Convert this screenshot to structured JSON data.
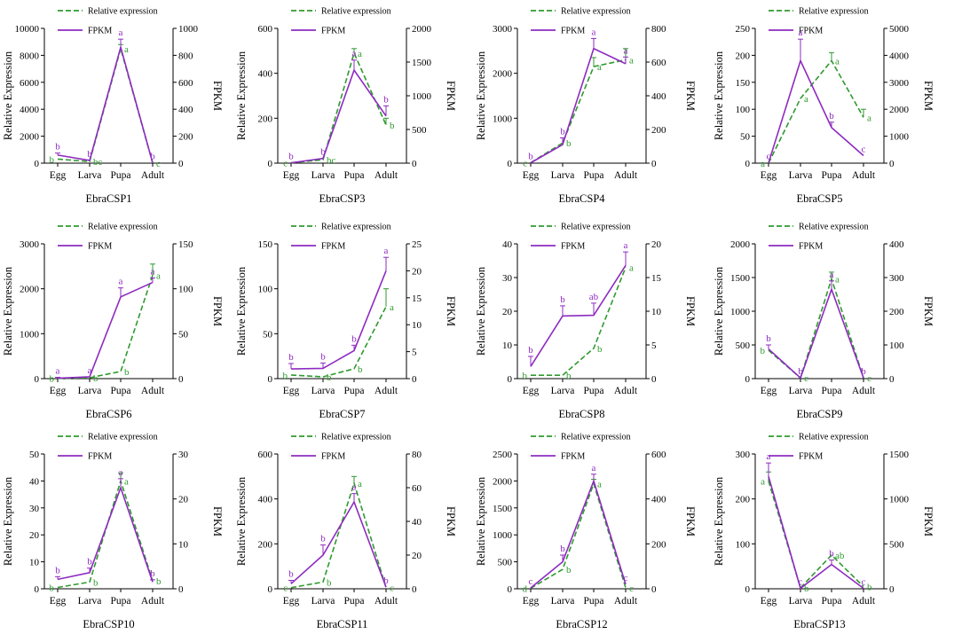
{
  "legend": {
    "relative": "Relative expression",
    "fpkm": "FPKM"
  },
  "colors": {
    "relative": "#2e9a2e",
    "fpkm": "#8e2bc0",
    "axis": "#000000"
  },
  "chart_data": [
    {
      "type": "line",
      "title": "EbraCSP1",
      "categories": [
        "Egg",
        "Larva",
        "Pupa",
        "Adult"
      ],
      "ylabel": "Relative Expression",
      "y2label": "FPKM",
      "ylim": [
        0,
        10000
      ],
      "yticks": [
        0,
        2000,
        4000,
        6000,
        8000,
        10000
      ],
      "y2lim": [
        0,
        1000
      ],
      "y2ticks": [
        0,
        200,
        400,
        600,
        800,
        1000
      ],
      "series": [
        {
          "name": "Relative expression",
          "axis": "left",
          "values": [
            300,
            120,
            8500,
            10
          ],
          "errors": [
            0,
            0,
            300,
            0
          ],
          "letters": [
            "b",
            "bc",
            "a",
            "c"
          ]
        },
        {
          "name": "FPKM",
          "axis": "right",
          "values": [
            60,
            20,
            860,
            2
          ],
          "errors": [
            15,
            0,
            60,
            0
          ],
          "letters": [
            "b",
            "b",
            "a",
            "b"
          ]
        }
      ]
    },
    {
      "type": "line",
      "title": "EbraCSP3",
      "categories": [
        "Egg",
        "Larva",
        "Pupa",
        "Adult"
      ],
      "ylabel": "Relative Expression",
      "y2label": "FPKM",
      "ylim": [
        0,
        600
      ],
      "yticks": [
        0,
        200,
        400,
        600
      ],
      "y2lim": [
        0,
        2000
      ],
      "y2ticks": [
        0,
        500,
        1000,
        1500,
        2000
      ],
      "series": [
        {
          "name": "Relative expression",
          "axis": "left",
          "values": [
            2,
            15,
            490,
            170
          ],
          "errors": [
            0,
            0,
            20,
            30
          ],
          "letters": [
            "c",
            "bc",
            "a",
            "b"
          ]
        },
        {
          "name": "FPKM",
          "axis": "right",
          "values": [
            5,
            70,
            1380,
            700
          ],
          "errors": [
            0,
            0,
            150,
            150
          ],
          "letters": [
            "b",
            "b",
            "a",
            "b"
          ]
        }
      ]
    },
    {
      "type": "line",
      "title": "EbraCSP4",
      "categories": [
        "Egg",
        "Larva",
        "Pupa",
        "Adult"
      ],
      "ylabel": "Relative Expression",
      "y2label": "FPKM",
      "ylim": [
        0,
        3000
      ],
      "yticks": [
        0,
        1000,
        2000,
        3000
      ],
      "y2lim": [
        0,
        800
      ],
      "y2ticks": [
        0,
        200,
        400,
        600,
        800
      ],
      "series": [
        {
          "name": "Relative expression",
          "axis": "left",
          "values": [
            10,
            450,
            2150,
            2300
          ],
          "errors": [
            0,
            0,
            200,
            250
          ],
          "letters": [
            "c",
            "b",
            "a",
            "a"
          ]
        },
        {
          "name": "FPKM",
          "axis": "right",
          "values": [
            2,
            110,
            680,
            590
          ],
          "errors": [
            0,
            40,
            60,
            40
          ],
          "letters": [
            "b",
            "b",
            "a",
            "a"
          ]
        }
      ]
    },
    {
      "type": "line",
      "title": "EbraCSP5",
      "categories": [
        "Egg",
        "Larva",
        "Pupa",
        "Adult"
      ],
      "ylabel": "Relative Expression",
      "y2label": "FPKM",
      "ylim": [
        0,
        250
      ],
      "yticks": [
        0,
        50,
        100,
        150,
        200,
        250
      ],
      "y2lim": [
        0,
        5000
      ],
      "y2ticks": [
        0,
        1000,
        2000,
        3000,
        4000,
        5000
      ],
      "series": [
        {
          "name": "Relative expression",
          "axis": "left",
          "values": [
            0,
            120,
            190,
            85
          ],
          "errors": [
            0,
            0,
            15,
            15
          ],
          "letters": [
            "a",
            "a",
            "a",
            "a"
          ]
        },
        {
          "name": "FPKM",
          "axis": "right",
          "values": [
            10,
            3800,
            1320,
            280
          ],
          "errors": [
            0,
            800,
            200,
            0
          ],
          "letters": [
            "c",
            "a",
            "b",
            "c"
          ]
        }
      ]
    },
    {
      "type": "line",
      "title": "EbraCSP6",
      "categories": [
        "Egg",
        "Larva",
        "Pupa",
        "Adult"
      ],
      "ylabel": "Relative Expression",
      "y2label": "FPKM",
      "ylim": [
        0,
        3000
      ],
      "yticks": [
        0,
        1000,
        2000,
        3000
      ],
      "y2lim": [
        0,
        150
      ],
      "y2ticks": [
        0,
        50,
        100,
        150
      ],
      "series": [
        {
          "name": "Relative expression",
          "axis": "left",
          "values": [
            5,
            20,
            160,
            2300
          ],
          "errors": [
            0,
            0,
            0,
            250
          ],
          "letters": [
            "b",
            "b",
            "b",
            "a"
          ]
        },
        {
          "name": "FPKM",
          "axis": "right",
          "values": [
            0.5,
            2,
            91,
            107
          ],
          "errors": [
            1,
            0,
            10,
            5
          ],
          "letters": [
            "a",
            "a",
            "a",
            "a"
          ]
        }
      ]
    },
    {
      "type": "line",
      "title": "EbraCSP7",
      "categories": [
        "Egg",
        "Larva",
        "Pupa",
        "Adult"
      ],
      "ylabel": "Relative Expression",
      "y2label": "FPKM",
      "ylim": [
        0,
        150
      ],
      "yticks": [
        0,
        50,
        100,
        150
      ],
      "y2lim": [
        0,
        25
      ],
      "y2ticks": [
        0,
        5,
        10,
        15,
        20,
        25
      ],
      "series": [
        {
          "name": "Relative expression",
          "axis": "left",
          "values": [
            4,
            2,
            11,
            80
          ],
          "errors": [
            0,
            0,
            0,
            20
          ],
          "letters": [
            "b",
            "b",
            "b",
            "a"
          ]
        },
        {
          "name": "FPKM",
          "axis": "right",
          "values": [
            1.8,
            1.9,
            5.2,
            20
          ],
          "errors": [
            1,
            1,
            1,
            2.5
          ],
          "letters": [
            "b",
            "b",
            "b",
            "a"
          ]
        }
      ]
    },
    {
      "type": "line",
      "title": "EbraCSP8",
      "categories": [
        "Egg",
        "Larva",
        "Pupa",
        "Adult"
      ],
      "ylabel": "Relative Expression",
      "y2label": "FPKM",
      "ylim": [
        0,
        40
      ],
      "yticks": [
        0,
        10,
        20,
        30,
        40
      ],
      "y2lim": [
        0,
        20
      ],
      "y2ticks": [
        0,
        5,
        10,
        15,
        20
      ],
      "series": [
        {
          "name": "Relative expression",
          "axis": "left",
          "values": [
            1,
            1,
            9,
            33
          ],
          "errors": [
            0,
            0,
            0,
            0
          ],
          "letters": [
            "b",
            "b",
            "b",
            "a"
          ]
        },
        {
          "name": "FPKM",
          "axis": "right",
          "values": [
            1.8,
            9.3,
            9.4,
            16.8
          ],
          "errors": [
            1.5,
            1.5,
            1.8,
            2
          ],
          "letters": [
            "b",
            "b",
            "ab",
            "a"
          ]
        }
      ]
    },
    {
      "type": "line",
      "title": "EbraCSP9",
      "categories": [
        "Egg",
        "Larva",
        "Pupa",
        "Adult"
      ],
      "ylabel": "Relative Expression",
      "y2label": "FPKM",
      "ylim": [
        0,
        2000
      ],
      "yticks": [
        0,
        500,
        1000,
        1500,
        2000
      ],
      "y2lim": [
        0,
        400
      ],
      "y2ticks": [
        0,
        100,
        200,
        300,
        400
      ],
      "series": [
        {
          "name": "Relative expression",
          "axis": "left",
          "values": [
            420,
            10,
            1480,
            10
          ],
          "errors": [
            0,
            0,
            100,
            0
          ],
          "letters": [
            "b",
            "c",
            "a",
            "c"
          ]
        },
        {
          "name": "FPKM",
          "axis": "right",
          "values": [
            88,
            2,
            265,
            2
          ],
          "errors": [
            12,
            0,
            25,
            0
          ],
          "letters": [
            "b",
            "b",
            "a",
            "b"
          ]
        }
      ]
    },
    {
      "type": "line",
      "title": "EbraCSP10",
      "categories": [
        "Egg",
        "Larva",
        "Pupa",
        "Adult"
      ],
      "ylabel": "Relative Expression",
      "y2label": "FPKM",
      "ylim": [
        0,
        50
      ],
      "yticks": [
        0,
        10,
        20,
        30,
        40,
        50
      ],
      "y2lim": [
        0,
        30
      ],
      "y2ticks": [
        0,
        10,
        20,
        30
      ],
      "series": [
        {
          "name": "Relative expression",
          "axis": "left",
          "values": [
            0.5,
            2.5,
            40,
            3
          ],
          "errors": [
            0,
            0,
            3,
            0
          ],
          "letters": [
            "b",
            "b",
            "a",
            "b"
          ]
        },
        {
          "name": "FPKM",
          "axis": "right",
          "values": [
            2.1,
            3.6,
            22.5,
            1.5
          ],
          "errors": [
            0.6,
            1,
            2,
            0.5
          ],
          "letters": [
            "b",
            "b",
            "a",
            "b"
          ]
        }
      ]
    },
    {
      "type": "line",
      "title": "EbraCSP11",
      "categories": [
        "Egg",
        "Larva",
        "Pupa",
        "Adult"
      ],
      "ylabel": "Relative Expression",
      "y2label": "FPKM",
      "ylim": [
        0,
        600
      ],
      "yticks": [
        0,
        200,
        400,
        600
      ],
      "y2lim": [
        0,
        80
      ],
      "y2ticks": [
        0,
        20,
        40,
        60,
        80
      ],
      "series": [
        {
          "name": "Relative expression",
          "axis": "left",
          "values": [
            5,
            30,
            470,
            5
          ],
          "errors": [
            0,
            0,
            30,
            0
          ],
          "letters": [
            "c",
            "b",
            "a",
            "c"
          ]
        },
        {
          "name": "FPKM",
          "axis": "right",
          "values": [
            3,
            20,
            51.5,
            1
          ],
          "errors": [
            2,
            6,
            5,
            0
          ],
          "letters": [
            "b",
            "b",
            "a",
            "b"
          ]
        }
      ]
    },
    {
      "type": "line",
      "title": "EbraCSP12",
      "categories": [
        "Egg",
        "Larva",
        "Pupa",
        "Adult"
      ],
      "ylabel": "Relative Expression",
      "y2label": "FPKM",
      "ylim": [
        0,
        2500
      ],
      "yticks": [
        0,
        500,
        1000,
        1500,
        2000,
        2500
      ],
      "y2lim": [
        0,
        600
      ],
      "y2ticks": [
        0,
        200,
        400,
        600
      ],
      "series": [
        {
          "name": "Relative expression",
          "axis": "left",
          "values": [
            10,
            360,
            1950,
            20
          ],
          "errors": [
            0,
            0,
            80,
            0
          ],
          "letters": [
            "d",
            "b",
            "a",
            "c"
          ]
        },
        {
          "name": "FPKM",
          "axis": "right",
          "values": [
            4,
            120,
            480,
            20
          ],
          "errors": [
            0,
            30,
            30,
            0
          ],
          "letters": [
            "c",
            "b",
            "a",
            "c"
          ]
        }
      ]
    },
    {
      "type": "line",
      "title": "EbraCSP13",
      "categories": [
        "Egg",
        "Larva",
        "Pupa",
        "Adult"
      ],
      "ylabel": "Relative Expression",
      "y2label": "FPKM",
      "ylim": [
        0,
        300
      ],
      "yticks": [
        0,
        100,
        200,
        300
      ],
      "y2lim": [
        0,
        1500
      ],
      "y2ticks": [
        0,
        500,
        1000,
        1500
      ],
      "series": [
        {
          "name": "Relative expression",
          "axis": "left",
          "values": [
            240,
            2,
            75,
            5
          ],
          "errors": [
            20,
            0,
            0,
            0
          ],
          "letters": [
            "a",
            "b",
            "ab",
            "b"
          ]
        },
        {
          "name": "FPKM",
          "axis": "right",
          "values": [
            1250,
            5,
            270,
            5
          ],
          "errors": [
            150,
            0,
            50,
            0
          ],
          "letters": [
            "a",
            "c",
            "b",
            "c"
          ]
        }
      ]
    }
  ]
}
